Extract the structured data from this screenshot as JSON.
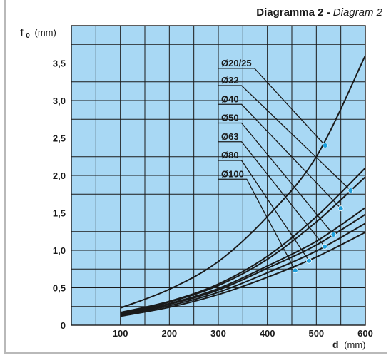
{
  "chart_data": {
    "type": "line",
    "title": "Diagramma 2",
    "title_separator": "-",
    "title_en": "Diagram 2",
    "ylabel_symbol": "f",
    "ylabel_sub": "0",
    "ylabel_unit": "(mm)",
    "xlabel": "d",
    "xlabel_unit": "(mm)",
    "xlim": [
      0,
      600
    ],
    "ylim": [
      0,
      4.0
    ],
    "x_ticks": [
      100,
      200,
      300,
      400,
      500,
      600
    ],
    "x_tick_labels": [
      "100",
      "200",
      "300",
      "400",
      "500",
      "600"
    ],
    "y_ticks": [
      0,
      0.5,
      1.0,
      1.5,
      2.0,
      2.5,
      3.0,
      3.5
    ],
    "y_tick_labels": [
      "0",
      "0,5",
      "1,0",
      "1,5",
      "2,0",
      "2,5",
      "3,0",
      "3,5"
    ],
    "grid": true,
    "colors": {
      "plot_bg": "#a8d8f4",
      "grid": "#1a1a1a",
      "curve": "#1a1a1a",
      "marker": "#1ea0dc"
    },
    "series": [
      {
        "name": "Ø20/25",
        "x": [
          100,
          200,
          300,
          400,
          500,
          600
        ],
        "y": [
          0.23,
          0.48,
          0.85,
          1.45,
          2.25,
          3.6
        ],
        "marker": {
          "x": 518,
          "y": 2.4
        },
        "label_y": 3.43
      },
      {
        "name": "Ø32",
        "x": [
          100,
          200,
          300,
          400,
          500,
          600
        ],
        "y": [
          0.17,
          0.32,
          0.55,
          0.92,
          1.45,
          2.1
        ],
        "marker": {
          "x": 570,
          "y": 1.8
        },
        "label_y": 3.2
      },
      {
        "name": "Ø40",
        "x": [
          100,
          200,
          300,
          400,
          500,
          600
        ],
        "y": [
          0.16,
          0.31,
          0.53,
          0.88,
          1.38,
          1.98
        ],
        "marker": {
          "x": 550,
          "y": 1.56
        },
        "label_y": 2.95
      },
      {
        "name": "Ø50",
        "x": [
          100,
          200,
          300,
          400,
          500,
          600
        ],
        "y": [
          0.15,
          0.29,
          0.49,
          0.79,
          1.12,
          1.57
        ],
        "marker": {
          "x": 535,
          "y": 1.21
        },
        "label_y": 2.7
      },
      {
        "name": "Ø63",
        "x": [
          100,
          200,
          300,
          400,
          500,
          600
        ],
        "y": [
          0.14,
          0.28,
          0.47,
          0.76,
          1.07,
          1.48
        ],
        "marker": {
          "x": 517,
          "y": 1.05
        },
        "label_y": 2.45
      },
      {
        "name": "Ø80",
        "x": [
          100,
          200,
          300,
          400,
          500,
          600
        ],
        "y": [
          0.13,
          0.26,
          0.44,
          0.7,
          0.99,
          1.36
        ],
        "marker": {
          "x": 485,
          "y": 0.86
        },
        "label_y": 2.2
      },
      {
        "name": "Ø100",
        "x": [
          100,
          200,
          300,
          400,
          500,
          600
        ],
        "y": [
          0.12,
          0.24,
          0.41,
          0.64,
          0.91,
          1.24
        ],
        "marker": {
          "x": 457,
          "y": 0.73
        },
        "label_y": 1.95
      }
    ],
    "label_x": 300
  }
}
